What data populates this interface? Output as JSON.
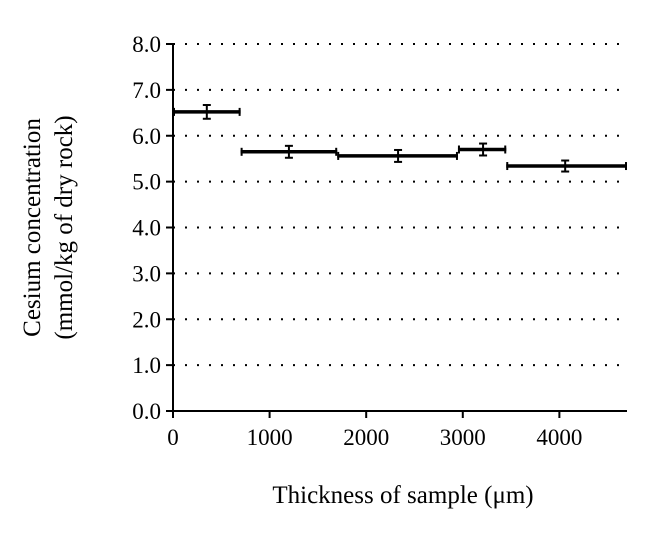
{
  "chart_data": {
    "type": "scatter",
    "title": "",
    "xlabel": "Thickness of sample (μm)",
    "ylabel_lines": [
      "Cesium concentration",
      "(mmol/kg of dry rock)"
    ],
    "xlim": [
      0,
      4700
    ],
    "ylim": [
      0,
      8
    ],
    "x_ticks": [
      0,
      1000,
      2000,
      3000,
      4000
    ],
    "x_tick_labels": [
      "0",
      "1000",
      "2000",
      "3000",
      "4000"
    ],
    "y_ticks": [
      0,
      1,
      2,
      3,
      4,
      5,
      6,
      7,
      8
    ],
    "y_tick_labels": [
      "0.0",
      "1.0",
      "2.0",
      "3.0",
      "4.0",
      "5.0",
      "6.0",
      "7.0",
      "8.0"
    ],
    "grid": "horizontal-dotted",
    "legend": "none",
    "color": "#000000",
    "points": [
      {
        "x_start": 0,
        "x_end": 700,
        "x": 350,
        "y": 6.52,
        "y_err": 0.15
      },
      {
        "x_start": 700,
        "x_end": 1700,
        "x": 1200,
        "y": 5.65,
        "y_err": 0.13
      },
      {
        "x_start": 1700,
        "x_end": 2950,
        "x": 2330,
        "y": 5.56,
        "y_err": 0.13
      },
      {
        "x_start": 2950,
        "x_end": 3450,
        "x": 3210,
        "y": 5.7,
        "y_err": 0.13
      },
      {
        "x_start": 3450,
        "x_end": 4700,
        "x": 4060,
        "y": 5.34,
        "y_err": 0.12
      }
    ]
  }
}
